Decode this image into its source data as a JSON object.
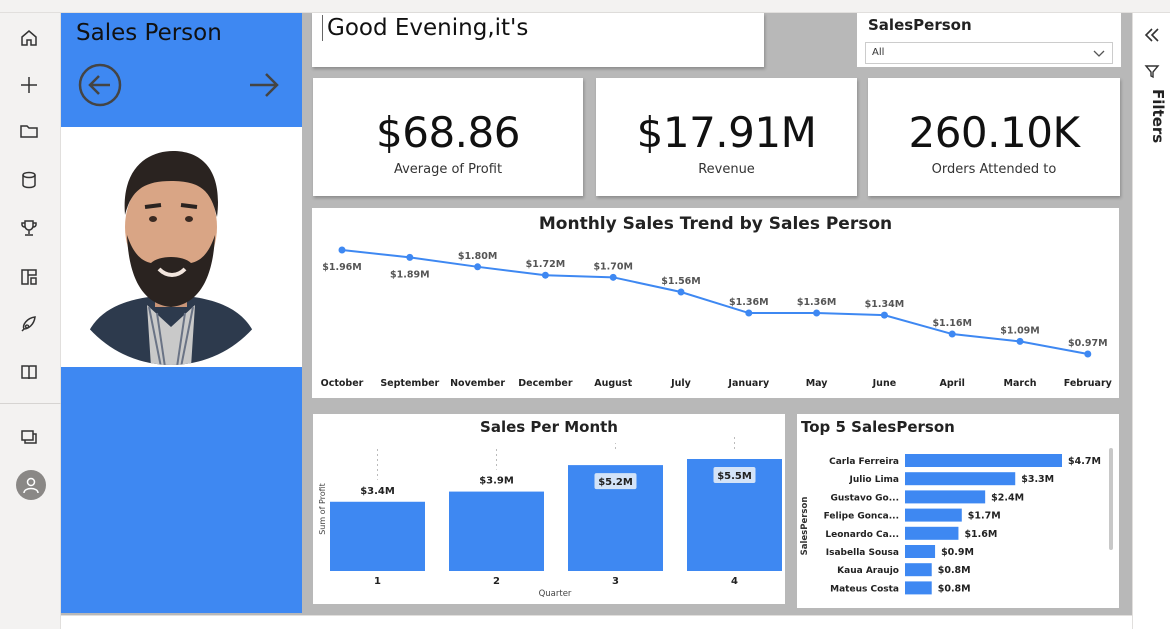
{
  "left_rail": {
    "icons": [
      "home-icon",
      "create-icon",
      "browse-icon",
      "data-hub-icon",
      "goals-icon",
      "apps-icon",
      "learn-icon",
      "book-icon",
      "workspaces-icon"
    ],
    "avatar_icon": "user-icon"
  },
  "sales_panel": {
    "title": "Sales Person",
    "prev_icon": "arrow-left-circle-icon",
    "next_icon": "arrow-right-icon",
    "photo_alt": "Sales person photo"
  },
  "greeting": "Good Evening,it's",
  "filter": {
    "label": "SalesPerson",
    "value": "All"
  },
  "kpis": [
    {
      "value": "$68.86",
      "label": "Average of Profit"
    },
    {
      "value": "$17.91M",
      "label": "Revenue"
    },
    {
      "value": "260.10K",
      "label": "Orders Attended to"
    }
  ],
  "right_panel": {
    "collapse_icon": "double-chevron-left-icon",
    "filter_icon": "filter-icon",
    "label": "Filters"
  },
  "chart_data": [
    {
      "type": "line",
      "title": "Monthly Sales Trend by Sales Person",
      "categories": [
        "October",
        "September",
        "November",
        "December",
        "August",
        "July",
        "January",
        "May",
        "June",
        "April",
        "March",
        "February"
      ],
      "values": [
        1.96,
        1.89,
        1.8,
        1.72,
        1.7,
        1.56,
        1.36,
        1.36,
        1.34,
        1.16,
        1.09,
        0.97
      ],
      "labels": [
        "$1.96M",
        "$1.89M",
        "$1.80M",
        "$1.72M",
        "$1.70M",
        "$1.56M",
        "$1.36M",
        "$1.36M",
        "$1.34M",
        "$1.16M",
        "$1.09M",
        "$0.97M"
      ],
      "color": "#3e88f2"
    },
    {
      "type": "bar",
      "title": "Sales Per Month",
      "categories": [
        "1",
        "2",
        "3",
        "4"
      ],
      "values": [
        3.4,
        3.9,
        5.2,
        5.5
      ],
      "labels": [
        "$3.4M",
        "$3.9M",
        "$5.2M",
        "$5.5M"
      ],
      "xlabel": "Quarter",
      "ylabel": "Sum of Profit",
      "color": "#3e88f2"
    },
    {
      "type": "bar",
      "orientation": "horizontal",
      "title": "Top 5 SalesPerson",
      "ylabel": "SalesPerson",
      "categories": [
        "Carla Ferreira",
        "Julio Lima",
        "Gustavo Go...",
        "Felipe Gonca...",
        "Leonardo Ca...",
        "Isabella Sousa",
        "Kaua Araujo",
        "Mateus Costa"
      ],
      "values": [
        4.7,
        3.3,
        2.4,
        1.7,
        1.6,
        0.9,
        0.8,
        0.8
      ],
      "labels": [
        "$4.7M",
        "$3.3M",
        "$2.4M",
        "$1.7M",
        "$1.6M",
        "$0.9M",
        "$0.8M",
        "$0.8M"
      ],
      "color": "#3e88f2"
    }
  ]
}
